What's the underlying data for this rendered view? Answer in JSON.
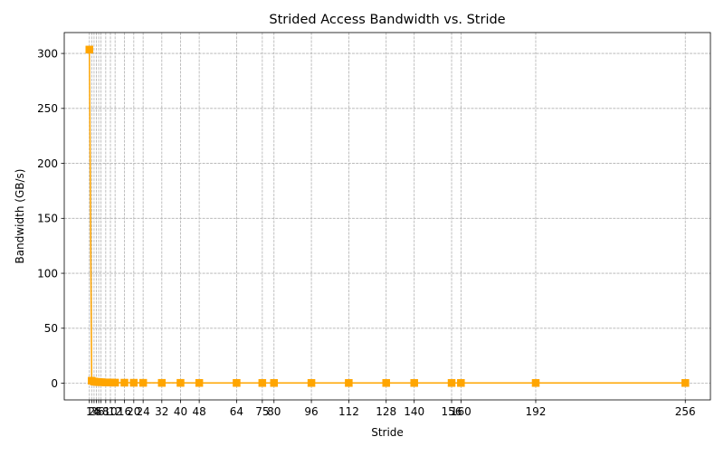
{
  "chart_data": {
    "type": "line",
    "title": "Strided Access Bandwidth vs. Stride",
    "xlabel": "Stride",
    "ylabel": "Bandwidth (GB/s)",
    "xlim": [
      -9.75,
      266.75
    ],
    "ylim": [
      -15.2,
      319
    ],
    "grid": true,
    "x": [
      1,
      2,
      3,
      4,
      5,
      6,
      8,
      10,
      12,
      16,
      20,
      24,
      32,
      40,
      48,
      64,
      75,
      80,
      96,
      112,
      128,
      140,
      156,
      160,
      192,
      256
    ],
    "x_tick_labels": [
      "1",
      "2",
      "3",
      "4",
      "5",
      "6",
      "8",
      "10",
      "12",
      "16",
      "20",
      "24",
      "32",
      "40",
      "48",
      "64",
      "75",
      "80",
      "96",
      "112",
      "128",
      "140",
      "156",
      "160",
      "192",
      "256"
    ],
    "y_ticks": [
      0,
      50,
      100,
      150,
      200,
      250,
      300
    ],
    "y_tick_labels": [
      "0",
      "50",
      "100",
      "150",
      "200",
      "250",
      "300"
    ],
    "series": [
      {
        "name": "Bandwidth",
        "color": "#FFA500",
        "marker": "square",
        "values": [
          303.5,
          2.2,
          1.5,
          1.2,
          1.0,
          0.9,
          0.7,
          0.6,
          0.5,
          0.45,
          0.4,
          0.35,
          0.3,
          0.3,
          0.25,
          0.25,
          0.2,
          0.2,
          0.2,
          0.2,
          0.2,
          0.2,
          0.2,
          0.2,
          0.2,
          0.2
        ]
      }
    ]
  }
}
